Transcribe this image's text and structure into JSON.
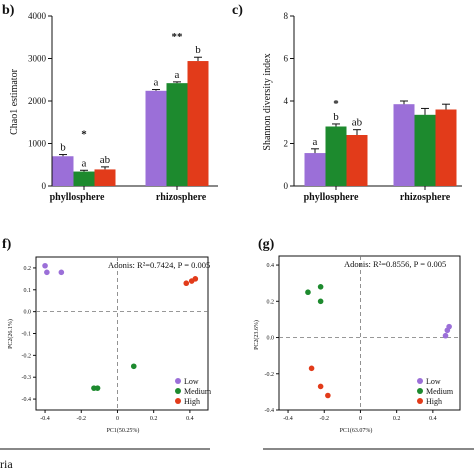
{
  "colors": {
    "Low": "#9b6fd8",
    "Medium": "#1d8a2e",
    "High": "#e23b1a"
  },
  "chart_data": [
    {
      "panel": "b)",
      "type": "bar",
      "ylabel": "Chao1 estimator",
      "ylim": [
        0,
        4000
      ],
      "yticks": [
        0,
        1000,
        2000,
        3000,
        4000
      ],
      "categories": [
        "phyllosphere",
        "rhizosphere"
      ],
      "series": [
        {
          "name": "Low",
          "values": [
            700,
            2240
          ],
          "errors": [
            40,
            30
          ]
        },
        {
          "name": "Medium",
          "values": [
            340,
            2420
          ],
          "errors": [
            30,
            30
          ]
        },
        {
          "name": "High",
          "values": [
            390,
            2940
          ],
          "errors": [
            60,
            90
          ]
        }
      ],
      "letters": [
        [
          "b",
          "a",
          "ab"
        ],
        [
          "a",
          "a",
          "b"
        ]
      ],
      "significance": [
        "*",
        "**"
      ]
    },
    {
      "panel": "c)",
      "type": "bar",
      "ylabel": "Shannon diversity index",
      "ylim": [
        0,
        8
      ],
      "yticks": [
        0,
        2,
        4,
        6,
        8
      ],
      "categories": [
        "phyllosphere",
        "rhizosphere"
      ],
      "series": [
        {
          "name": "Low",
          "values": [
            1.55,
            3.85
          ],
          "errors": [
            0.2,
            0.15
          ]
        },
        {
          "name": "Medium",
          "values": [
            2.8,
            3.35
          ],
          "errors": [
            0.12,
            0.3
          ]
        },
        {
          "name": "High",
          "values": [
            2.4,
            3.6
          ],
          "errors": [
            0.25,
            0.25
          ]
        }
      ],
      "letters": [
        [
          "a",
          "b",
          "ab"
        ],
        [
          "",
          "",
          ""
        ]
      ],
      "significance": [
        "*",
        ""
      ]
    },
    {
      "panel": "f)",
      "type": "scatter",
      "xlabel": "PC1(50.25%)",
      "ylabel": "PC2(26.1%)",
      "xlim": [
        -0.45,
        0.5
      ],
      "ylim": [
        -0.45,
        0.25
      ],
      "xticks": [
        -0.4,
        -0.2,
        0,
        0.2,
        0.4
      ],
      "yticks": [
        -0.4,
        -0.3,
        -0.2,
        -0.1,
        0.0,
        0.1,
        0.2
      ],
      "annotation": "Adonis: R²=0.7424, P = 0.005",
      "legend_position": "bottom-right",
      "series": [
        {
          "name": "Low",
          "points": [
            [
              -0.4,
              0.21
            ],
            [
              -0.39,
              0.18
            ],
            [
              -0.31,
              0.18
            ]
          ]
        },
        {
          "name": "Medium",
          "points": [
            [
              -0.13,
              -0.35
            ],
            [
              -0.11,
              -0.35
            ],
            [
              0.09,
              -0.25
            ]
          ]
        },
        {
          "name": "High",
          "points": [
            [
              0.38,
              0.13
            ],
            [
              0.41,
              0.14
            ],
            [
              0.43,
              0.15
            ]
          ]
        }
      ]
    },
    {
      "panel": "(g)",
      "type": "scatter",
      "xlabel": "PC1(63.07%)",
      "ylabel": "PC2(23.6%)",
      "xlim": [
        -0.45,
        0.55
      ],
      "ylim": [
        -0.4,
        0.45
      ],
      "xticks": [
        -0.4,
        -0.2,
        0,
        0.2,
        0.4
      ],
      "yticks": [
        -0.4,
        -0.2,
        0.0,
        0.2,
        0.4
      ],
      "annotation": "Adonis: R²=0.8556, P = 0.005",
      "legend_position": "bottom-right",
      "series": [
        {
          "name": "Low",
          "points": [
            [
              0.47,
              0.01
            ],
            [
              0.48,
              0.04
            ],
            [
              0.49,
              0.06
            ]
          ]
        },
        {
          "name": "Medium",
          "points": [
            [
              -0.29,
              0.25
            ],
            [
              -0.22,
              0.28
            ],
            [
              -0.22,
              0.2
            ]
          ]
        },
        {
          "name": "High",
          "points": [
            [
              -0.27,
              -0.17
            ],
            [
              -0.22,
              -0.27
            ],
            [
              -0.18,
              -0.32
            ]
          ]
        }
      ]
    }
  ],
  "footer": {
    "left_text": "ria"
  }
}
